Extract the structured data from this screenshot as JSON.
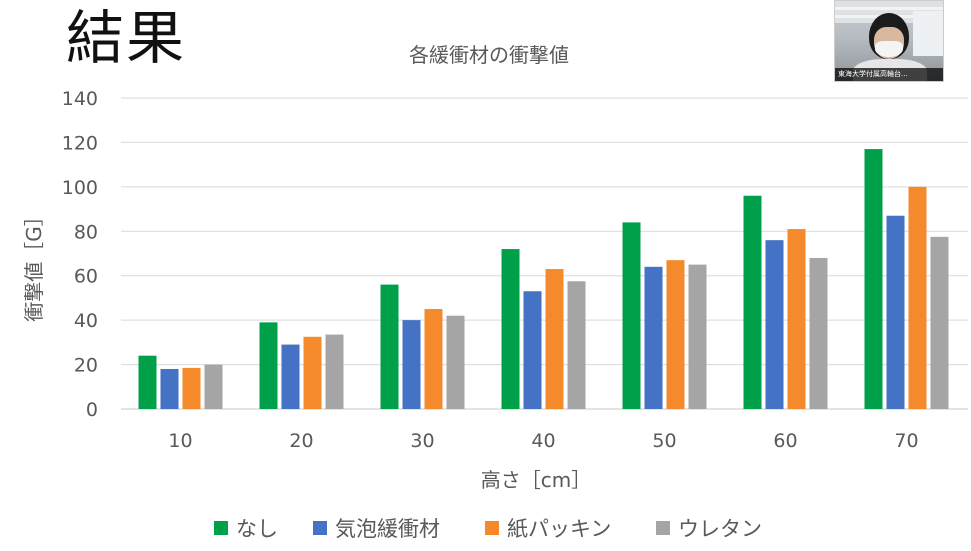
{
  "slide": {
    "title": "結果"
  },
  "webcam": {
    "participant_label": "東海大学付属高輪台..."
  },
  "chart_data": {
    "type": "bar",
    "title": "各緩衝材の衝撃値",
    "xlabel": "高さ［cm］",
    "ylabel": "衝撃値［G］",
    "categories": [
      "10",
      "20",
      "30",
      "40",
      "50",
      "60",
      "70"
    ],
    "ylim": [
      0,
      140
    ],
    "yticks": [
      "0",
      "20",
      "40",
      "60",
      "80",
      "100",
      "120",
      "140"
    ],
    "grid": true,
    "legend_position": "bottom",
    "series": [
      {
        "name": "なし",
        "color": "#00A04A",
        "values": [
          24,
          39,
          56,
          72,
          84,
          96,
          117
        ]
      },
      {
        "name": "気泡緩衝材",
        "color": "#4472C4",
        "values": [
          18,
          29,
          40,
          53,
          64,
          76,
          87
        ]
      },
      {
        "name": "紙パッキン",
        "color": "#F58A2C",
        "values": [
          18.5,
          32.5,
          45,
          63,
          67,
          81,
          100
        ]
      },
      {
        "name": "ウレタン",
        "color": "#A5A5A5",
        "values": [
          20,
          33.5,
          42,
          57.5,
          65,
          68,
          77.5
        ]
      }
    ]
  }
}
